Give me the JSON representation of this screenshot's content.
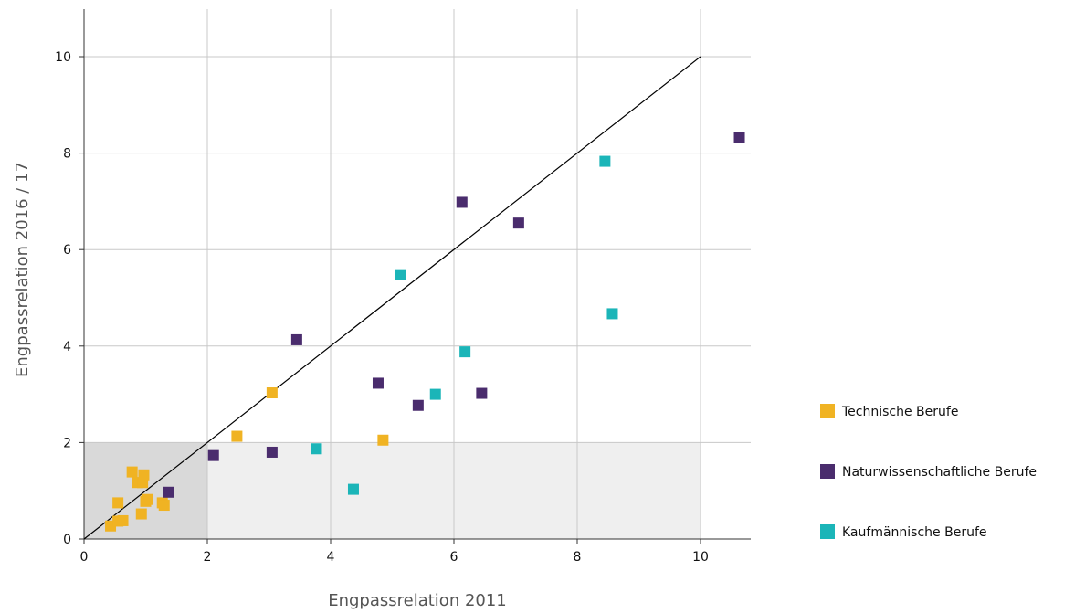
{
  "chart_data": {
    "type": "scatter",
    "title": "",
    "xlabel": "Engpassrelation 2011",
    "ylabel": "Engpassrelation 2016 / 17",
    "xlim": [
      0,
      10.8
    ],
    "ylim": [
      0,
      11
    ],
    "x_ticks": [
      0,
      2,
      4,
      6,
      8,
      10
    ],
    "y_ticks": [
      0,
      2,
      4,
      6,
      8,
      10
    ],
    "grid": true,
    "legend_position": "right",
    "reference_line": {
      "from": [
        0,
        0
      ],
      "to": [
        10,
        10
      ]
    },
    "shaded_regions": [
      {
        "x": [
          0,
          2
        ],
        "y": [
          0,
          2
        ],
        "color": "#d9d9d9"
      },
      {
        "x": [
          2,
          10
        ],
        "y": [
          0,
          2
        ],
        "color": "#efefef"
      }
    ],
    "series": [
      {
        "name": "Technische Berufe",
        "color": "#f0b323",
        "points": [
          [
            0.43,
            0.27
          ],
          [
            0.55,
            0.37
          ],
          [
            0.63,
            0.38
          ],
          [
            0.55,
            0.75
          ],
          [
            0.78,
            1.39
          ],
          [
            0.87,
            1.17
          ],
          [
            0.95,
            1.17
          ],
          [
            0.97,
            1.33
          ],
          [
            0.93,
            0.52
          ],
          [
            1.0,
            0.78
          ],
          [
            1.03,
            0.82
          ],
          [
            1.27,
            0.75
          ],
          [
            1.3,
            0.7
          ],
          [
            2.48,
            2.13
          ],
          [
            3.05,
            3.03
          ],
          [
            4.85,
            2.05
          ]
        ]
      },
      {
        "name": "Naturwissenschaftliche Berufe",
        "color": "#4a2c6d",
        "points": [
          [
            1.37,
            0.97
          ],
          [
            2.1,
            1.73
          ],
          [
            3.05,
            1.8
          ],
          [
            3.45,
            4.13
          ],
          [
            4.77,
            3.23
          ],
          [
            5.42,
            2.77
          ],
          [
            6.13,
            6.98
          ],
          [
            6.45,
            3.02
          ],
          [
            7.05,
            6.55
          ],
          [
            10.63,
            8.32
          ]
        ]
      },
      {
        "name": "Kaufmännische Berufe",
        "color": "#1bb5b8",
        "points": [
          [
            3.77,
            1.87
          ],
          [
            4.37,
            1.03
          ],
          [
            5.13,
            5.48
          ],
          [
            5.7,
            3.0
          ],
          [
            6.18,
            3.88
          ],
          [
            8.45,
            7.83
          ],
          [
            8.57,
            4.67
          ]
        ]
      }
    ]
  }
}
